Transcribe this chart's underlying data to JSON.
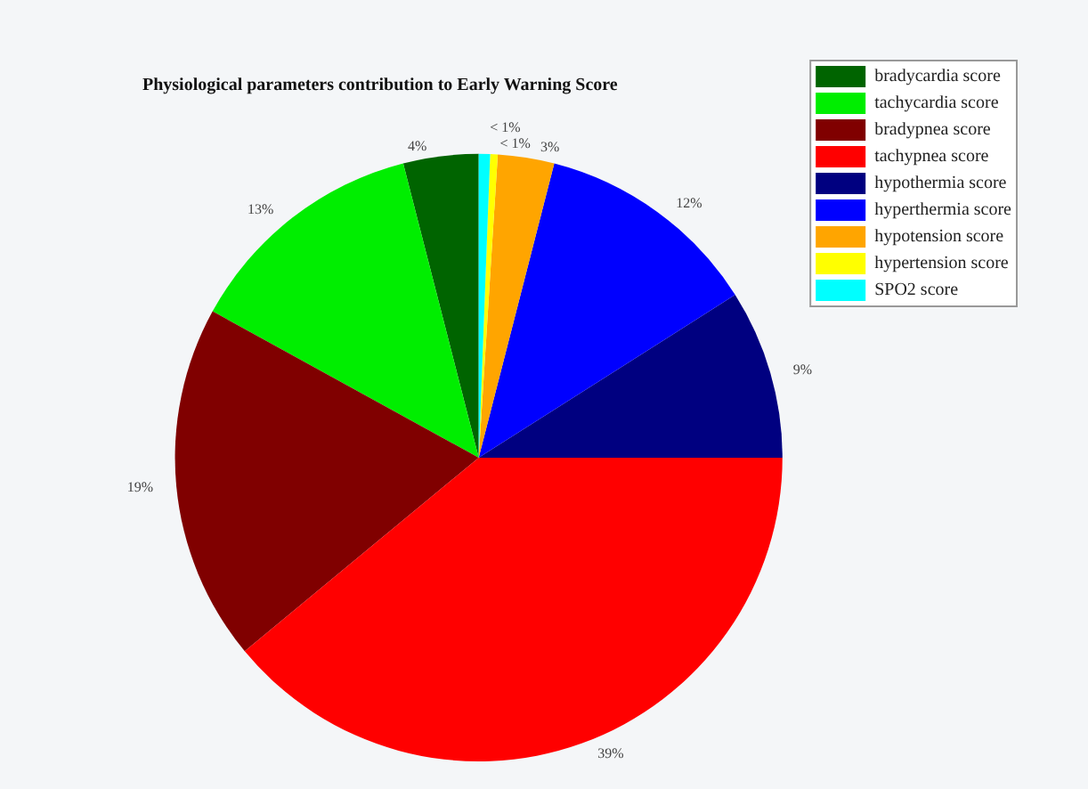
{
  "chart_data": {
    "type": "pie",
    "title": "Physiological parameters contribution to Early Warning Score",
    "categories": [
      "bradycardia score",
      "tachycardia score",
      "bradypnea score",
      "tachypnea score",
      "hypothermia score",
      "hyperthermia score",
      "hypotension score",
      "hypertension score",
      "SPO2 score"
    ],
    "values": [
      4,
      13,
      19,
      39,
      9,
      12,
      3,
      0.4,
      0.6
    ],
    "value_labels": [
      "4%",
      "13%",
      "19%",
      "39%",
      "9%",
      "12%",
      "3%",
      "< 1%",
      "< 1%"
    ],
    "colors": [
      "#006400",
      "#00ee00",
      "#800000",
      "#ff0000",
      "#000080",
      "#0000ff",
      "#ffa500",
      "#ffff00",
      "#00ffff"
    ],
    "legend": "top right"
  }
}
